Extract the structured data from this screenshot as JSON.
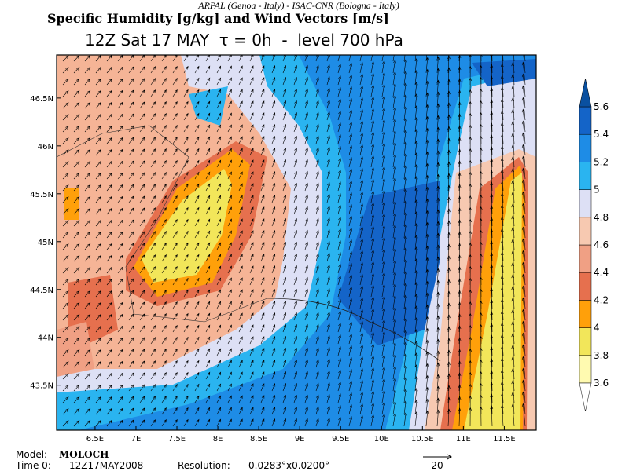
{
  "header": {
    "credit": "ARPAL (Genoa - Italy)  -  ISAC-CNR (Bologna - Italy)",
    "title": "Specific Humidity [g/kg] and Wind Vectors [m/s]",
    "subtitle": "12Z Sat 17 MAY  τ = 0h  -  level 700 hPa"
  },
  "map": {
    "lon_range": [
      6.03,
      11.89
    ],
    "lat_range": [
      43.03,
      46.95
    ],
    "lon_ticks": [
      {
        "value": 6.5,
        "label": "6.5E"
      },
      {
        "value": 7,
        "label": "7E"
      },
      {
        "value": 7.5,
        "label": "7.5E"
      },
      {
        "value": 8,
        "label": "8E"
      },
      {
        "value": 8.5,
        "label": "8.5E"
      },
      {
        "value": 9,
        "label": "9E"
      },
      {
        "value": 9.5,
        "label": "9.5E"
      },
      {
        "value": 10,
        "label": "10E"
      },
      {
        "value": 10.5,
        "label": "10.5E"
      },
      {
        "value": 11,
        "label": "11E"
      },
      {
        "value": 11.5,
        "label": "11.5E"
      }
    ],
    "lat_ticks": [
      {
        "value": 43.5,
        "label": "43.5N"
      },
      {
        "value": 44,
        "label": "44N"
      },
      {
        "value": 44.5,
        "label": "44.5N"
      },
      {
        "value": 45,
        "label": "45N"
      },
      {
        "value": 45.5,
        "label": "45.5N"
      },
      {
        "value": 46,
        "label": "46N"
      },
      {
        "value": 46.5,
        "label": "46.5N"
      }
    ]
  },
  "colorbar": {
    "levels": [
      3.6,
      3.8,
      4,
      4.2,
      4.4,
      4.6,
      4.8,
      5,
      5.2,
      5.4,
      5.6
    ],
    "colors": [
      "#fffab0",
      "#f2e65a",
      "#ffa00a",
      "#e6704e",
      "#f0a084",
      "#f7c9b1",
      "#dde0f5",
      "#2ab4f0",
      "#1e8ce6",
      "#1464c8"
    ],
    "over_color": "#0a50a0"
  },
  "footer": {
    "model_label": "Model:",
    "model": "MOLOCH",
    "time_label": "Time 0:",
    "time": "12Z17MAY2008",
    "resolution_label": "Resolution:",
    "resolution": "0.0283°x0.0200°",
    "reference_vector": "20"
  }
}
